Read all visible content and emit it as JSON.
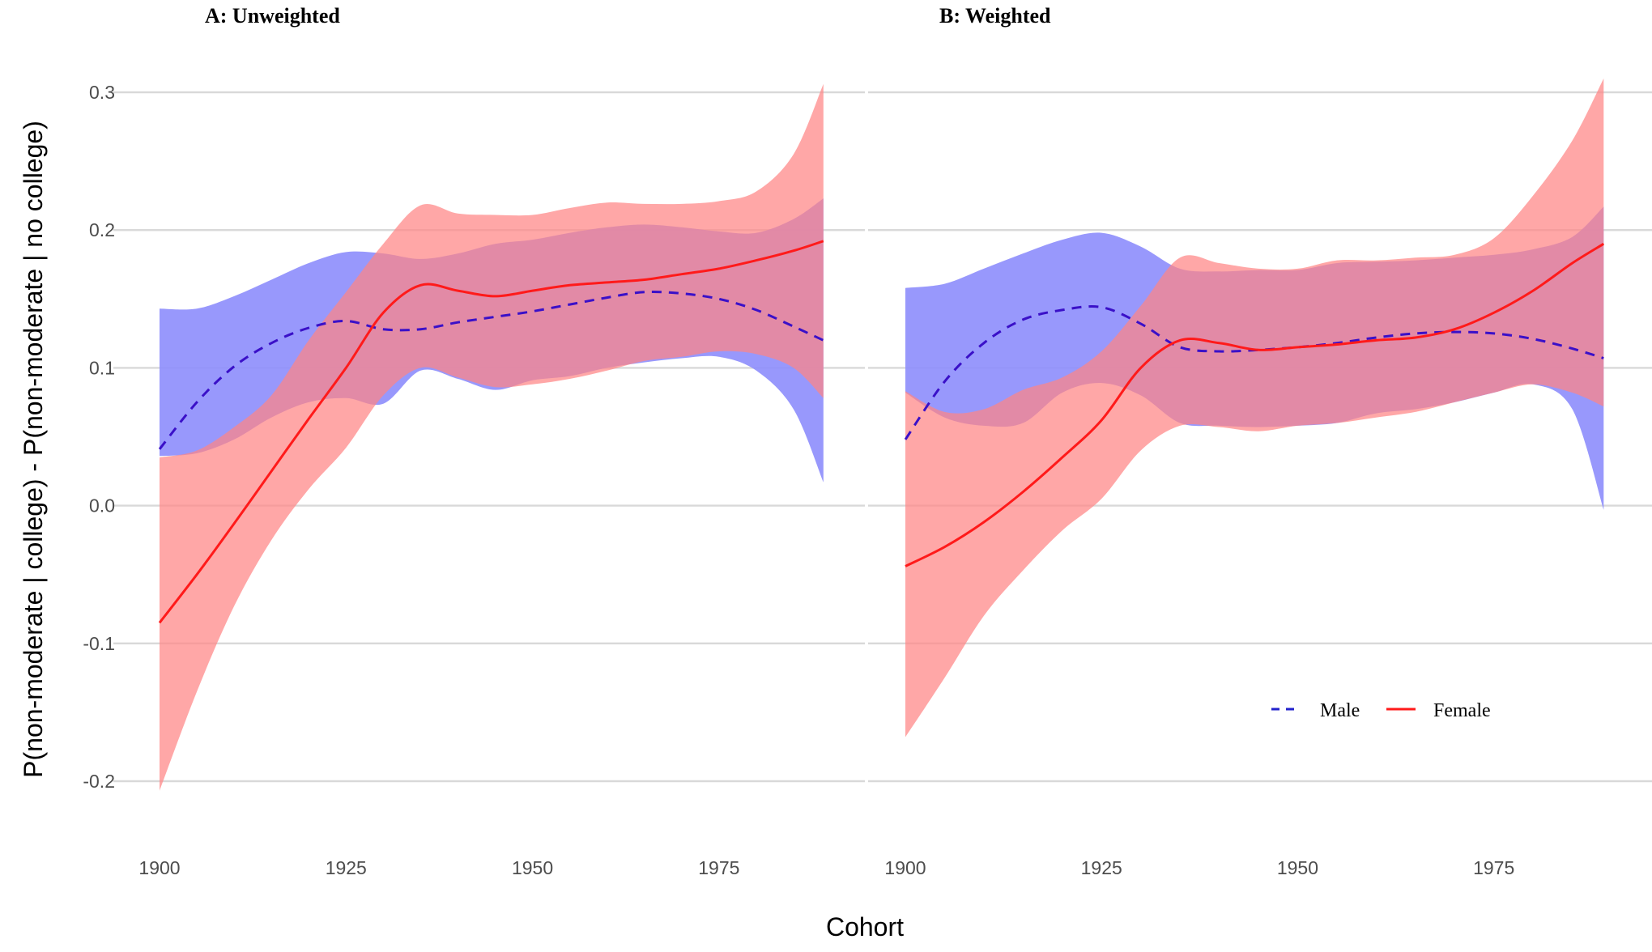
{
  "chart_data": {
    "type": "line",
    "xlabel": "Cohort",
    "ylabel": "P(non-moderate | college) - P(non-moderate | no college)",
    "xlim": [
      1900,
      1990
    ],
    "ylim": [
      -0.2,
      0.3
    ],
    "x_ticks": [
      1900,
      1925,
      1950,
      1975
    ],
    "y_ticks": [
      -0.2,
      -0.1,
      0.0,
      0.1,
      0.2,
      0.3
    ],
    "y_tick_labels": [
      "-0.2",
      "-0.1",
      "0.0",
      "0.1",
      "0.2",
      "0.3"
    ],
    "grid": true,
    "legend": {
      "placement": "bottom-right",
      "entries": [
        "Male",
        "Female"
      ]
    },
    "colors": {
      "male_line": "#2222cc",
      "male_band": "#8f8ffc",
      "female_line": "#ff1a1a",
      "female_band": "#ff8585"
    },
    "x": [
      1900,
      1905,
      1910,
      1915,
      1920,
      1925,
      1930,
      1935,
      1940,
      1945,
      1950,
      1955,
      1960,
      1965,
      1970,
      1975,
      1980,
      1985,
      1989
    ],
    "panels": [
      {
        "title": "A: Unweighted",
        "series": [
          {
            "name": "Male",
            "style": "dashed",
            "values": [
              0.041,
              0.075,
              0.101,
              0.118,
              0.129,
              0.134,
              0.128,
              0.128,
              0.133,
              0.137,
              0.141,
              0.146,
              0.151,
              0.155,
              0.154,
              0.15,
              0.142,
              0.13,
              0.12
            ],
            "lower": [
              0.036,
              0.038,
              0.048,
              0.064,
              0.075,
              0.078,
              0.074,
              0.098,
              0.092,
              0.084,
              0.091,
              0.094,
              0.1,
              0.104,
              0.107,
              0.108,
              0.098,
              0.07,
              0.017
            ],
            "upper": [
              0.143,
              0.143,
              0.152,
              0.164,
              0.176,
              0.184,
              0.183,
              0.179,
              0.183,
              0.19,
              0.193,
              0.198,
              0.202,
              0.204,
              0.202,
              0.199,
              0.198,
              0.208,
              0.223
            ]
          },
          {
            "name": "Female",
            "style": "solid",
            "values": [
              -0.085,
              -0.05,
              -0.013,
              0.025,
              0.063,
              0.1,
              0.14,
              0.16,
              0.156,
              0.152,
              0.156,
              0.16,
              0.162,
              0.164,
              0.168,
              0.172,
              0.178,
              0.185,
              0.192
            ],
            "lower": [
              -0.207,
              -0.135,
              -0.073,
              -0.025,
              0.012,
              0.042,
              0.08,
              0.1,
              0.093,
              0.086,
              0.088,
              0.092,
              0.098,
              0.105,
              0.108,
              0.112,
              0.11,
              0.1,
              0.078
            ],
            "upper": [
              0.035,
              0.04,
              0.057,
              0.08,
              0.12,
              0.155,
              0.19,
              0.218,
              0.212,
              0.211,
              0.211,
              0.216,
              0.22,
              0.219,
              0.219,
              0.221,
              0.228,
              0.255,
              0.306
            ]
          }
        ]
      },
      {
        "title": "B: Weighted",
        "series": [
          {
            "name": "Male",
            "style": "dashed",
            "values": [
              0.048,
              0.09,
              0.118,
              0.135,
              0.142,
              0.144,
              0.132,
              0.115,
              0.112,
              0.113,
              0.115,
              0.118,
              0.122,
              0.125,
              0.126,
              0.125,
              0.121,
              0.114,
              0.107
            ],
            "lower": [
              0.082,
              0.064,
              0.058,
              0.06,
              0.082,
              0.089,
              0.08,
              0.06,
              0.058,
              0.057,
              0.058,
              0.06,
              0.067,
              0.07,
              0.075,
              0.082,
              0.088,
              0.07,
              -0.003
            ],
            "upper": [
              0.158,
              0.161,
              0.172,
              0.183,
              0.193,
              0.198,
              0.188,
              0.172,
              0.17,
              0.171,
              0.171,
              0.176,
              0.177,
              0.178,
              0.18,
              0.182,
              0.186,
              0.195,
              0.217
            ]
          },
          {
            "name": "Female",
            "style": "solid",
            "values": [
              -0.044,
              -0.03,
              -0.012,
              0.01,
              0.035,
              0.062,
              0.1,
              0.12,
              0.118,
              0.113,
              0.115,
              0.117,
              0.12,
              0.122,
              0.128,
              0.14,
              0.156,
              0.176,
              0.19
            ],
            "lower": [
              -0.168,
              -0.125,
              -0.08,
              -0.047,
              -0.018,
              0.005,
              0.04,
              0.058,
              0.057,
              0.054,
              0.058,
              0.06,
              0.064,
              0.068,
              0.075,
              0.082,
              0.088,
              0.082,
              0.072
            ],
            "upper": [
              0.083,
              0.068,
              0.07,
              0.084,
              0.093,
              0.112,
              0.145,
              0.18,
              0.176,
              0.172,
              0.172,
              0.178,
              0.178,
              0.18,
              0.182,
              0.194,
              0.225,
              0.265,
              0.31
            ]
          }
        ]
      }
    ]
  }
}
